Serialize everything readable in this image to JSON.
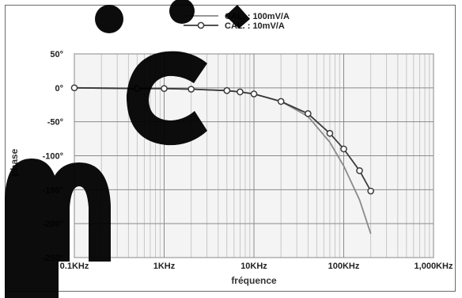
{
  "chart_data": {
    "type": "line",
    "xlabel": "fréquence",
    "ylabel": "phase",
    "x_scale": "log",
    "xlim": [
      0.1,
      1000
    ],
    "ylim": [
      -250,
      50
    ],
    "x_ticks": [
      {
        "value": 0.1,
        "label": "0.1KHz"
      },
      {
        "value": 1,
        "label": "1KHz"
      },
      {
        "value": 10,
        "label": "10KHz"
      },
      {
        "value": 100,
        "label": "100KHz"
      },
      {
        "value": 1000,
        "label": "1,000KHz"
      }
    ],
    "y_ticks": [
      {
        "value": 50,
        "label": "50°"
      },
      {
        "value": 0,
        "label": "0°"
      },
      {
        "value": -50,
        "label": "-50°"
      },
      {
        "value": -100,
        "label": "-100°"
      },
      {
        "value": -150,
        "label": "-150°"
      },
      {
        "value": -200,
        "label": "-200°"
      },
      {
        "value": -250,
        "label": "-250°"
      }
    ],
    "grid": true,
    "legend": "top-center",
    "series": [
      {
        "name": "CAL. : 100mV/A",
        "color": "#8a8a8a",
        "marker": "none",
        "points": [
          [
            0.1,
            0
          ],
          [
            0.5,
            -1
          ],
          [
            1,
            -1
          ],
          [
            2,
            -2
          ],
          [
            5,
            -4
          ],
          [
            7,
            -6
          ],
          [
            10,
            -9
          ],
          [
            20,
            -20
          ],
          [
            40,
            -42
          ],
          [
            70,
            -80
          ],
          [
            100,
            -115
          ],
          [
            150,
            -165
          ],
          [
            200,
            -215
          ]
        ]
      },
      {
        "name": "CAL. : 10mV/A",
        "color": "#3a3a3a",
        "marker": "circle",
        "points": [
          [
            0.1,
            0
          ],
          [
            0.5,
            -1
          ],
          [
            1,
            -1
          ],
          [
            2,
            -2
          ],
          [
            5,
            -4
          ],
          [
            7,
            -6
          ],
          [
            10,
            -9
          ],
          [
            20,
            -20
          ],
          [
            40,
            -38
          ],
          [
            70,
            -67
          ],
          [
            100,
            -90
          ],
          [
            150,
            -122
          ],
          [
            200,
            -152
          ]
        ]
      }
    ]
  }
}
